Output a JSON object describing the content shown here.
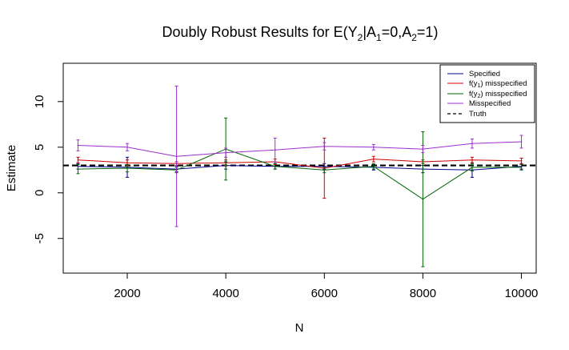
{
  "chart_data": {
    "type": "line",
    "title": {
      "pre": "Doubly Robust Results for E(Y",
      "s1": "2",
      "mid1": "|A",
      "s2": "1",
      "mid2": "=0,A",
      "s3": "2",
      "post": "=1)"
    },
    "xlabel": "N",
    "ylabel": "Estimate",
    "xlim": [
      700,
      10300
    ],
    "ylim": [
      -8.8,
      14.2
    ],
    "xticks": [
      2000,
      4000,
      6000,
      8000,
      10000
    ],
    "yticks": [
      -5,
      0,
      5,
      10
    ],
    "x": [
      1000,
      2000,
      3000,
      4000,
      5000,
      6000,
      7000,
      8000,
      9000,
      10000
    ],
    "truth": 3.0,
    "series": [
      {
        "name": "Specified",
        "color": "#00008b",
        "values": [
          2.9,
          2.8,
          2.6,
          3.0,
          2.9,
          2.9,
          2.8,
          2.6,
          2.5,
          2.9
        ],
        "err": [
          0.3,
          1.1,
          0.3,
          0.4,
          0.3,
          0.3,
          0.3,
          0.4,
          0.8,
          0.3
        ]
      },
      {
        "name_pre": "f(y",
        "name_sub": "1",
        "name_post": ") misspecified",
        "color": "#cd0000",
        "values": [
          3.6,
          3.3,
          3.2,
          3.3,
          3.4,
          2.7,
          3.7,
          3.4,
          3.6,
          3.5
        ],
        "err": [
          0.3,
          0.3,
          0.2,
          0.3,
          0.3,
          3.3,
          0.3,
          0.2,
          0.3,
          0.3
        ]
      },
      {
        "name_pre": "f(y",
        "name_sub": "2",
        "name_post": ") misspecified",
        "color": "#006400",
        "values": [
          2.6,
          2.7,
          2.5,
          4.8,
          2.9,
          2.5,
          2.9,
          -0.7,
          2.8,
          2.8
        ],
        "err": [
          0.5,
          0.4,
          0.3,
          3.4,
          0.3,
          0.3,
          0.3,
          7.4,
          0.4,
          0.3
        ]
      },
      {
        "name": "Misspecified",
        "color": "#9b30d0",
        "values": [
          5.2,
          5.0,
          4.0,
          4.4,
          4.7,
          5.1,
          5.0,
          4.8,
          5.4,
          5.6
        ],
        "err": [
          0.6,
          0.4,
          7.7,
          0.5,
          1.3,
          0.4,
          0.3,
          0.4,
          0.5,
          0.7
        ]
      }
    ],
    "legend": {
      "position": "top-right",
      "truth_label": "Truth"
    }
  }
}
